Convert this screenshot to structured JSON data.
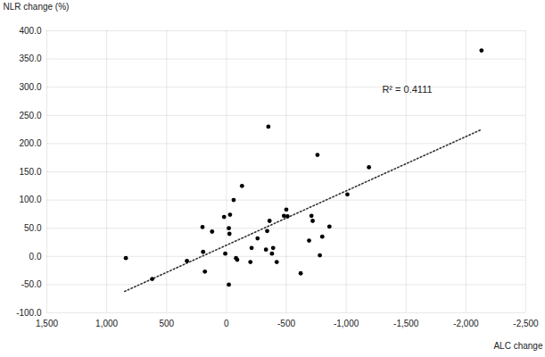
{
  "chart_data": {
    "type": "scatter",
    "x_label": "ALC change",
    "y_label": "NLR change (%)",
    "x": [
      840,
      620,
      330,
      200,
      195,
      180,
      120,
      20,
      -30,
      10,
      -20,
      -25,
      -20,
      -60,
      -80,
      -90,
      -130,
      -200,
      -210,
      -260,
      -330,
      -340,
      -350,
      -360,
      -380,
      -390,
      -420,
      -480,
      -500,
      -510,
      -620,
      -690,
      -710,
      -720,
      -760,
      -780,
      -800,
      -860,
      -1010,
      -1190,
      -2130
    ],
    "y": [
      -3,
      -40,
      -8,
      52,
      8,
      -27,
      44,
      70,
      74,
      5,
      50,
      40,
      -50,
      100,
      -3,
      -6,
      125,
      -10,
      15,
      32,
      12,
      45,
      230,
      63,
      5,
      15,
      -10,
      72,
      83,
      71,
      -30,
      28,
      72,
      63,
      180,
      2,
      35,
      53,
      110,
      158,
      365
    ],
    "color": "#000000",
    "xlim": [
      1500,
      -2500
    ],
    "xticks": [
      {
        "value": 1500,
        "label": "1,500"
      },
      {
        "value": 1000,
        "label": "1,000"
      },
      500,
      0,
      -500,
      {
        "value": -1000,
        "label": "-1,000"
      },
      {
        "value": -1500,
        "label": "-1,500"
      },
      {
        "value": -2000,
        "label": "-2,000"
      },
      {
        "value": -2500,
        "label": "-2,500"
      }
    ],
    "ylim": [
      -100,
      400
    ],
    "yticks": [
      {
        "value": -100,
        "label": "-100.0"
      },
      {
        "value": -50,
        "label": "-50.0"
      },
      {
        "value": 0,
        "label": "0.0"
      },
      {
        "value": 50,
        "label": "50.0"
      },
      {
        "value": 100,
        "label": "100.0"
      },
      {
        "value": 150,
        "label": "150.0"
      },
      {
        "value": 200,
        "label": "200.0"
      },
      {
        "value": 250,
        "label": "250.0"
      },
      {
        "value": 300,
        "label": "300.0"
      },
      {
        "value": 350,
        "label": "350.0"
      },
      {
        "value": 400,
        "label": "400.0"
      }
    ],
    "grid": true,
    "trendline": {
      "x": [
        850,
        -2130
      ],
      "y": [
        -62,
        225
      ],
      "line_style": "dotted"
    },
    "annotation": "R² = 0.4111"
  }
}
